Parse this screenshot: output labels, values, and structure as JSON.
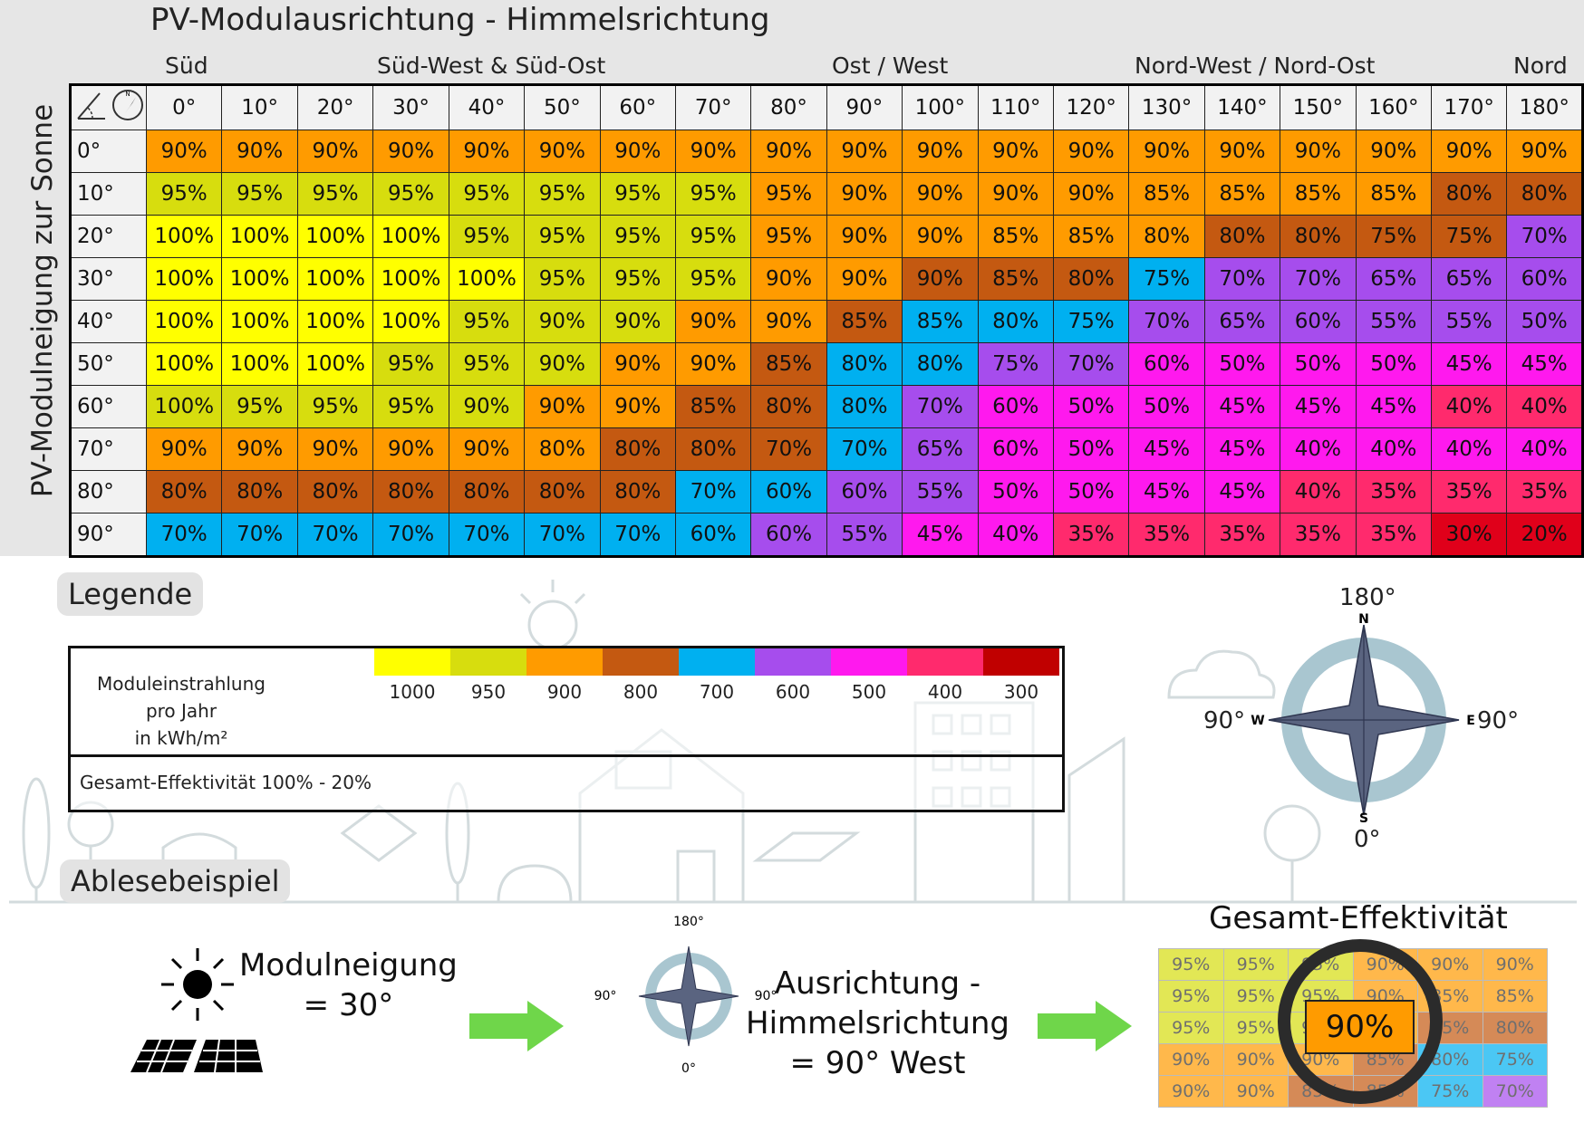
{
  "title": "PV-Modulausrichtung - Himmelsrichtung",
  "direction_labels": [
    "Süd",
    "Süd-West & Süd-Ost",
    "Ost / West",
    "Nord-West / Nord-Ost",
    "Nord"
  ],
  "y_axis_title": "PV-Modulneigung zur Sonne",
  "col_headers": [
    "0°",
    "10°",
    "20°",
    "30°",
    "40°",
    "50°",
    "60°",
    "70°",
    "80°",
    "90°",
    "100°",
    "110°",
    "120°",
    "130°",
    "140°",
    "150°",
    "160°",
    "170°",
    "180°"
  ],
  "row_headers": [
    "0°",
    "10°",
    "20°",
    "30°",
    "40°",
    "50°",
    "60°",
    "70°",
    "80°",
    "90°"
  ],
  "matrix": [
    [
      90,
      90,
      90,
      90,
      90,
      90,
      90,
      90,
      90,
      90,
      90,
      90,
      90,
      90,
      90,
      90,
      90,
      90,
      90
    ],
    [
      95,
      95,
      95,
      95,
      95,
      95,
      95,
      95,
      95,
      90,
      90,
      90,
      90,
      85,
      85,
      85,
      85,
      80,
      80
    ],
    [
      100,
      100,
      100,
      100,
      95,
      95,
      95,
      95,
      95,
      90,
      90,
      85,
      85,
      80,
      80,
      80,
      75,
      75,
      70
    ],
    [
      100,
      100,
      100,
      100,
      100,
      95,
      95,
      95,
      90,
      90,
      90,
      85,
      80,
      75,
      70,
      70,
      65,
      65,
      60
    ],
    [
      100,
      100,
      100,
      100,
      95,
      90,
      90,
      90,
      90,
      85,
      85,
      80,
      75,
      70,
      65,
      60,
      55,
      55,
      50
    ],
    [
      100,
      100,
      100,
      95,
      95,
      90,
      90,
      90,
      85,
      80,
      80,
      75,
      70,
      60,
      50,
      50,
      50,
      45,
      45
    ],
    [
      100,
      95,
      95,
      95,
      90,
      90,
      90,
      85,
      80,
      80,
      70,
      60,
      50,
      50,
      45,
      45,
      45,
      40,
      40
    ],
    [
      90,
      90,
      90,
      90,
      90,
      80,
      80,
      80,
      70,
      70,
      65,
      60,
      50,
      45,
      45,
      40,
      40,
      40,
      40
    ],
    [
      80,
      80,
      80,
      80,
      80,
      80,
      80,
      70,
      60,
      60,
      55,
      50,
      50,
      45,
      45,
      40,
      35,
      35,
      35
    ],
    [
      70,
      70,
      70,
      70,
      70,
      70,
      70,
      60,
      60,
      55,
      45,
      40,
      35,
      35,
      35,
      35,
      35,
      30,
      20
    ]
  ],
  "matrix_colors": [
    [
      "#ff9b00",
      "#ff9b00",
      "#ff9b00",
      "#ff9b00",
      "#ff9b00",
      "#ff9b00",
      "#ff9b00",
      "#ff9b00",
      "#ff9b00",
      "#ff9b00",
      "#ff9b00",
      "#ff9b00",
      "#ff9b00",
      "#ff9b00",
      "#ff9b00",
      "#ff9b00",
      "#ff9b00",
      "#ff9b00",
      "#ff9b00"
    ],
    [
      "#d7dd0e",
      "#d7dd0e",
      "#d7dd0e",
      "#d7dd0e",
      "#d7dd0e",
      "#d7dd0e",
      "#d7dd0e",
      "#d7dd0e",
      "#ff9b00",
      "#ff9b00",
      "#ff9b00",
      "#ff9b00",
      "#ff9b00",
      "#ff9b00",
      "#ff9b00",
      "#ff9b00",
      "#ff9b00",
      "#c45911",
      "#c45911"
    ],
    [
      "#ffff00",
      "#ffff00",
      "#ffff00",
      "#ffff00",
      "#d7dd0e",
      "#d7dd0e",
      "#d7dd0e",
      "#d7dd0e",
      "#ff9b00",
      "#ff9b00",
      "#ff9b00",
      "#ff9b00",
      "#ff9b00",
      "#ff9b00",
      "#c45911",
      "#c45911",
      "#c45911",
      "#c45911",
      "#a64ded"
    ],
    [
      "#ffff00",
      "#ffff00",
      "#ffff00",
      "#ffff00",
      "#ffff00",
      "#d7dd0e",
      "#d7dd0e",
      "#d7dd0e",
      "#ff9b00",
      "#ff9b00",
      "#c45911",
      "#c45911",
      "#c45911",
      "#00b0f0",
      "#a64ded",
      "#a64ded",
      "#a64ded",
      "#a64ded",
      "#a64ded"
    ],
    [
      "#ffff00",
      "#ffff00",
      "#ffff00",
      "#ffff00",
      "#d7dd0e",
      "#d7dd0e",
      "#d7dd0e",
      "#ff9b00",
      "#ff9b00",
      "#c45911",
      "#00b0f0",
      "#00b0f0",
      "#00b0f0",
      "#a64ded",
      "#a64ded",
      "#a64ded",
      "#a64ded",
      "#a64ded",
      "#a64ded"
    ],
    [
      "#ffff00",
      "#ffff00",
      "#ffff00",
      "#d7dd0e",
      "#d7dd0e",
      "#d7dd0e",
      "#ff9b00",
      "#ff9b00",
      "#c45911",
      "#00b0f0",
      "#00b0f0",
      "#a64ded",
      "#a64ded",
      "#ff19ee",
      "#ff19ee",
      "#ff19ee",
      "#ff19ee",
      "#ff19ee",
      "#ff19ee"
    ],
    [
      "#d7dd0e",
      "#d7dd0e",
      "#d7dd0e",
      "#d7dd0e",
      "#d7dd0e",
      "#ff9b00",
      "#ff9b00",
      "#c45911",
      "#c45911",
      "#00b0f0",
      "#a64ded",
      "#ff19ee",
      "#ff19ee",
      "#ff19ee",
      "#ff19ee",
      "#ff19ee",
      "#ff19ee",
      "#ff2a6d",
      "#ff2a6d"
    ],
    [
      "#ff9b00",
      "#ff9b00",
      "#ff9b00",
      "#ff9b00",
      "#ff9b00",
      "#ff9b00",
      "#c45911",
      "#c45911",
      "#c45911",
      "#00b0f0",
      "#a64ded",
      "#ff19ee",
      "#ff19ee",
      "#ff19ee",
      "#ff19ee",
      "#ff19ee",
      "#ff19ee",
      "#ff19ee",
      "#ff19ee"
    ],
    [
      "#c45911",
      "#c45911",
      "#c45911",
      "#c45911",
      "#c45911",
      "#c45911",
      "#c45911",
      "#00b0f0",
      "#00b0f0",
      "#a64ded",
      "#a64ded",
      "#ff19ee",
      "#ff19ee",
      "#ff19ee",
      "#ff19ee",
      "#ff2a6d",
      "#ff2a6d",
      "#ff2a6d",
      "#ff2a6d"
    ],
    [
      "#00b0f0",
      "#00b0f0",
      "#00b0f0",
      "#00b0f0",
      "#00b0f0",
      "#00b0f0",
      "#00b0f0",
      "#00b0f0",
      "#a64ded",
      "#a64ded",
      "#ff19ee",
      "#ff19ee",
      "#ff2a6d",
      "#ff2a6d",
      "#ff2a6d",
      "#ff2a6d",
      "#ff2a6d",
      "#e0001a",
      "#e0001a"
    ]
  ],
  "legend_title": "Legende",
  "legend_label_lines": [
    "Moduleinstrahlung pro Jahr",
    "in kWh/m²"
  ],
  "legend_swatches": [
    {
      "color": "#ffff00",
      "value": "1000"
    },
    {
      "color": "#d7dd0e",
      "value": "950"
    },
    {
      "color": "#ff9b00",
      "value": "900"
    },
    {
      "color": "#c45911",
      "value": "800"
    },
    {
      "color": "#00b0f0",
      "value": "700"
    },
    {
      "color": "#a64ded",
      "value": "600"
    },
    {
      "color": "#ff19ee",
      "value": "500"
    },
    {
      "color": "#ff2a6d",
      "value": "400"
    },
    {
      "color": "#c00000",
      "value": "300"
    }
  ],
  "legend_total": "Gesamt-Effektivität  100% - 20%",
  "compass": {
    "north": "180°",
    "east": "90°",
    "west": "90°",
    "south": "0°",
    "n": "N",
    "e": "E",
    "w": "W",
    "s": "S"
  },
  "example_title": "Ablesebeispiel",
  "example": {
    "tilt_line1": "Modulneigung",
    "tilt_line2": "= 30°",
    "orientation_line1": "Ausrichtung -",
    "orientation_line2": "Himmelsrichtung",
    "orientation_line3": "= 90° West",
    "result_title": "Gesamt-Effektivität",
    "small_compass": {
      "north": "180°",
      "east": "90°",
      "west": "90°",
      "south": "0°"
    },
    "grid": [
      [
        "95%",
        "95%",
        "95%",
        "90%",
        "90%",
        "90%"
      ],
      [
        "95%",
        "95%",
        "95%",
        "90%",
        "85%",
        "85%"
      ],
      [
        "95%",
        "95%",
        "95%",
        "90%",
        "85%",
        "80%"
      ],
      [
        "90%",
        "90%",
        "90%",
        "85%",
        "80%",
        "75%"
      ],
      [
        "90%",
        "90%",
        "85%",
        "85%",
        "75%",
        "70%"
      ]
    ],
    "grid_colors": [
      [
        "#d7dd0e",
        "#d7dd0e",
        "#d7dd0e",
        "#ff9b00",
        "#ff9b00",
        "#ff9b00"
      ],
      [
        "#d7dd0e",
        "#d7dd0e",
        "#d7dd0e",
        "#ff9b00",
        "#ff9b00",
        "#ff9b00"
      ],
      [
        "#d7dd0e",
        "#d7dd0e",
        "#d7dd0e",
        "#ff9b00",
        "#c45911",
        "#c45911"
      ],
      [
        "#ff9b00",
        "#ff9b00",
        "#ff9b00",
        "#c45911",
        "#00b0f0",
        "#00b0f0"
      ],
      [
        "#ff9b00",
        "#ff9b00",
        "#c45911",
        "#c45911",
        "#00b0f0",
        "#a64ded"
      ]
    ],
    "highlight": "90%"
  },
  "accent_colors": {
    "arrow": "#6fd64a",
    "compass_ring": "#a9c6d0",
    "compass_star": "#5a6480"
  }
}
